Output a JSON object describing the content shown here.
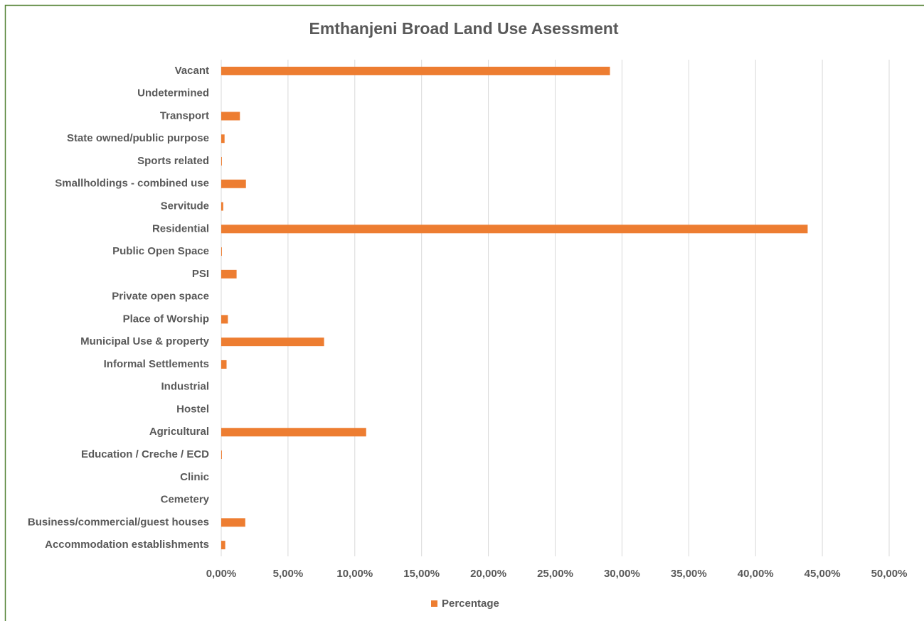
{
  "chart_data": {
    "type": "bar",
    "orientation": "horizontal",
    "title": "Emthanjeni Broad Land Use Asessment",
    "categories": [
      "Vacant",
      "Undetermined",
      "Transport",
      "State owned/public purpose",
      "Sports related",
      "Smallholdings  - combined use",
      "Servitude",
      "Residential",
      "Public Open Space",
      "PSI",
      "Private open space",
      "Place of Worship",
      "Municipal Use &  property",
      "Informal Settlements",
      "Industrial",
      "Hostel",
      "Agricultural",
      "Education / Creche / ECD",
      "Clinic",
      "Cemetery",
      "Business/commercial/guest houses",
      "Accommodation establishments"
    ],
    "series": [
      {
        "name": "Percentage",
        "color": "#ed7d31",
        "values": [
          29.1,
          0,
          1.4,
          0.25,
          0.05,
          1.85,
          0.15,
          43.9,
          0.05,
          1.15,
          0,
          0.5,
          7.7,
          0.4,
          0,
          0,
          10.85,
          0.05,
          0,
          0,
          1.8,
          0.3
        ]
      }
    ],
    "xlim": [
      0,
      50
    ],
    "xticks": [
      {
        "value": 0,
        "label": "0,00%"
      },
      {
        "value": 5,
        "label": "5,00%"
      },
      {
        "value": 10,
        "label": "10,00%"
      },
      {
        "value": 15,
        "label": "15,00%"
      },
      {
        "value": 20,
        "label": "20,00%"
      },
      {
        "value": 25,
        "label": "25,00%"
      },
      {
        "value": 30,
        "label": "30,00%"
      },
      {
        "value": 35,
        "label": "35,00%"
      },
      {
        "value": 40,
        "label": "40,00%"
      },
      {
        "value": 45,
        "label": "45,00%"
      },
      {
        "value": 50,
        "label": "50,00%"
      }
    ],
    "grid": true,
    "legend": "bottom"
  }
}
